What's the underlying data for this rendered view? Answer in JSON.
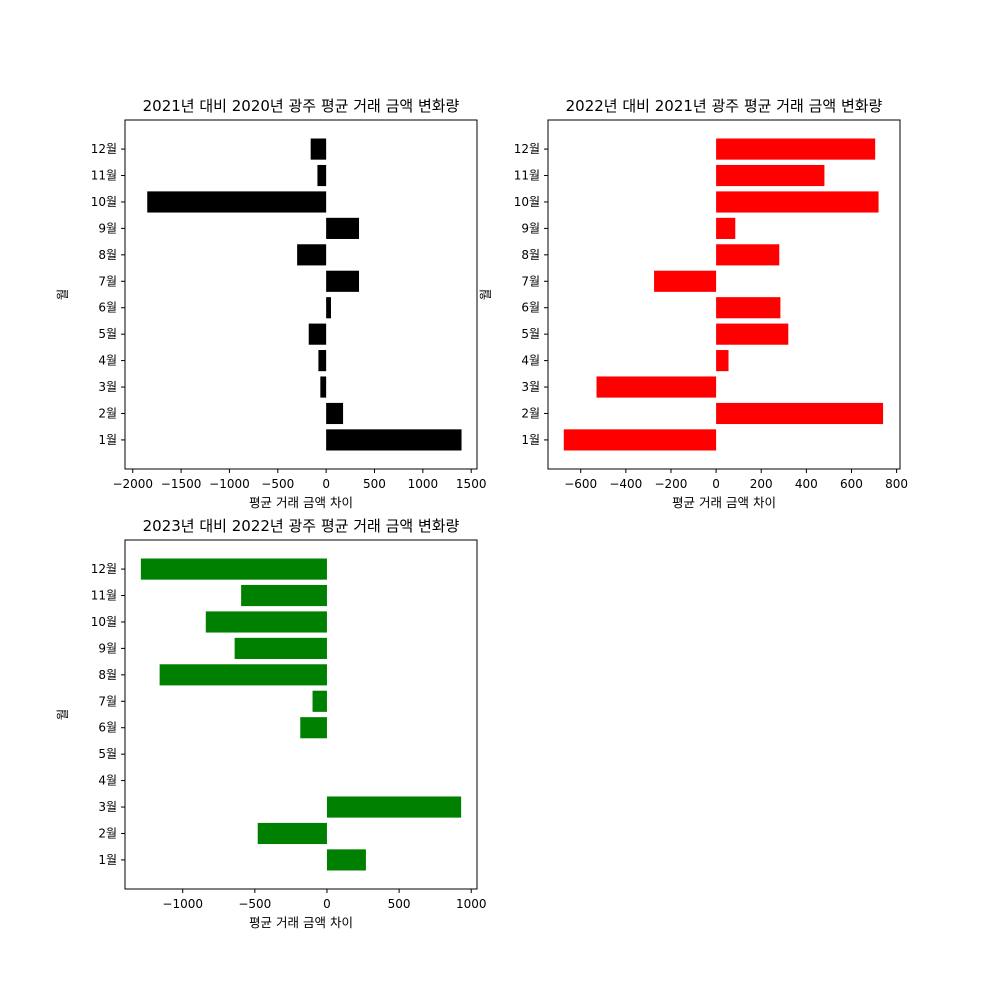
{
  "chart_data": [
    {
      "type": "bar",
      "orientation": "horizontal",
      "title": "2021년 대비 2020년 광주 평균 거래 금액 변화량",
      "xlabel": "평균 거래 금액 차이",
      "ylabel": "월",
      "color": "#000000",
      "xlim": [
        -2080,
        1560
      ],
      "xticks": [
        -2000,
        -1500,
        -1000,
        -500,
        0,
        500,
        1000,
        1500
      ],
      "categories": [
        "1월",
        "2월",
        "3월",
        "4월",
        "5월",
        "6월",
        "7월",
        "8월",
        "9월",
        "10월",
        "11월",
        "12월"
      ],
      "values": [
        1400,
        175,
        -60,
        -80,
        -180,
        50,
        340,
        -300,
        340,
        -1850,
        -90,
        -160
      ],
      "grid": false
    },
    {
      "type": "bar",
      "orientation": "horizontal",
      "title": "2022년 대비 2021년 광주 평균 거래 금액 변화량",
      "xlabel": "평균 거래 금액 차이",
      "ylabel": "월",
      "color": "#ff0000",
      "xlim": [
        -745,
        815
      ],
      "xticks": [
        -600,
        -400,
        -200,
        0,
        200,
        400,
        600,
        800
      ],
      "categories": [
        "1월",
        "2월",
        "3월",
        "4월",
        "5월",
        "6월",
        "7월",
        "8월",
        "9월",
        "10월",
        "11월",
        "12월"
      ],
      "values": [
        -675,
        740,
        -530,
        55,
        320,
        285,
        -275,
        280,
        85,
        720,
        480,
        705
      ],
      "grid": false
    },
    {
      "type": "bar",
      "orientation": "horizontal",
      "title": "2023년 대비 2022년 광주 평균 거래 금액 변화량",
      "xlabel": "평균 거래 금액 차이",
      "ylabel": "월",
      "color": "#008000",
      "xlim": [
        -1400,
        1040
      ],
      "xticks": [
        -1000,
        -500,
        0,
        500,
        1000
      ],
      "categories": [
        "1월",
        "2월",
        "3월",
        "4월",
        "5월",
        "6월",
        "7월",
        "8월",
        "9월",
        "10월",
        "11월",
        "12월"
      ],
      "values": [
        270,
        -480,
        930,
        0,
        0,
        -185,
        -100,
        -1160,
        -640,
        -840,
        -595,
        -1290
      ],
      "grid": false
    }
  ]
}
